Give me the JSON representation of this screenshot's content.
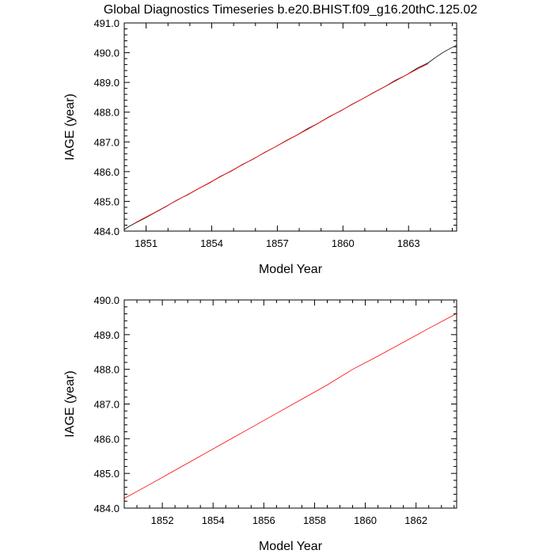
{
  "title": "Global Diagnostics Timeseries b.e20.BHIST.f09_g16.20thC.125.02",
  "colors": {
    "series_black": "#000000",
    "series_red": "#ff0000",
    "axis": "#000000",
    "background": "#ffffff"
  },
  "chart_data": [
    {
      "type": "line",
      "xlabel": "Model Year",
      "ylabel": "IAGE (year)",
      "xlim": [
        1850.0,
        1865.2
      ],
      "ylim": [
        484.0,
        491.0
      ],
      "xticks": [
        1851,
        1854,
        1857,
        1860,
        1863
      ],
      "xtick_labels": [
        "1851",
        "1854",
        "1857",
        "1860",
        "1863"
      ],
      "yticks": [
        484.0,
        485.0,
        486.0,
        487.0,
        488.0,
        489.0,
        490.0,
        491.0
      ],
      "ytick_labels": [
        "484.0",
        "485.0",
        "486.0",
        "487.0",
        "488.0",
        "489.0",
        "490.0",
        "491.0"
      ],
      "grid": false,
      "series": [
        {
          "color": "#000000",
          "x": [
            1850.0,
            1850.2,
            1850.5,
            1850.9,
            1851.4,
            1851.9,
            1852.4,
            1852.9,
            1853.4,
            1853.9,
            1854.4,
            1854.9,
            1855.4,
            1855.9,
            1856.4,
            1856.9,
            1857.4,
            1857.9,
            1858.4,
            1858.9,
            1859.4,
            1859.9,
            1860.4,
            1860.9,
            1861.4,
            1861.9,
            1862.4,
            1862.9,
            1863.4,
            1863.9,
            1864.2,
            1864.6,
            1865.0,
            1865.2
          ],
          "y": [
            484.05,
            484.15,
            484.27,
            484.42,
            484.62,
            484.82,
            485.04,
            485.22,
            485.43,
            485.62,
            485.84,
            486.02,
            486.24,
            486.42,
            486.64,
            486.83,
            487.04,
            487.23,
            487.45,
            487.64,
            487.86,
            488.04,
            488.26,
            488.45,
            488.66,
            488.85,
            489.07,
            489.25,
            489.48,
            489.66,
            489.82,
            490.02,
            490.18,
            490.25
          ]
        },
        {
          "color": "#ff0000",
          "x": [
            1850.5,
            1851.4,
            1852.4,
            1853.4,
            1854.4,
            1855.4,
            1856.4,
            1857.4,
            1858.4,
            1859.4,
            1860.4,
            1861.4,
            1862.4,
            1863.4,
            1863.9
          ],
          "y": [
            484.28,
            484.63,
            485.03,
            485.43,
            485.83,
            486.23,
            486.63,
            487.03,
            487.43,
            487.85,
            488.25,
            488.65,
            489.05,
            489.45,
            489.63
          ]
        }
      ]
    },
    {
      "type": "line",
      "xlabel": "Model Year",
      "ylabel": "IAGE (year)",
      "xlim": [
        1850.5,
        1863.6
      ],
      "ylim": [
        484.0,
        490.0
      ],
      "xticks": [
        1852,
        1854,
        1856,
        1858,
        1860,
        1862
      ],
      "xtick_labels": [
        "1852",
        "1854",
        "1856",
        "1858",
        "1860",
        "1862"
      ],
      "yticks": [
        484.0,
        485.0,
        486.0,
        487.0,
        488.0,
        489.0,
        490.0
      ],
      "ytick_labels": [
        "484.0",
        "485.0",
        "486.0",
        "487.0",
        "488.0",
        "489.0",
        "490.0"
      ],
      "grid": false,
      "series": [
        {
          "color": "#ff0000",
          "x": [
            1850.5,
            1851.5,
            1852.5,
            1853.5,
            1854.5,
            1855.5,
            1856.5,
            1857.5,
            1858.5,
            1859.5,
            1860.5,
            1861.5,
            1862.5,
            1863.5,
            1863.6
          ],
          "y": [
            484.28,
            484.68,
            485.09,
            485.5,
            485.91,
            486.32,
            486.73,
            487.14,
            487.55,
            488.0,
            488.38,
            488.78,
            489.18,
            489.57,
            489.62
          ]
        }
      ]
    }
  ]
}
